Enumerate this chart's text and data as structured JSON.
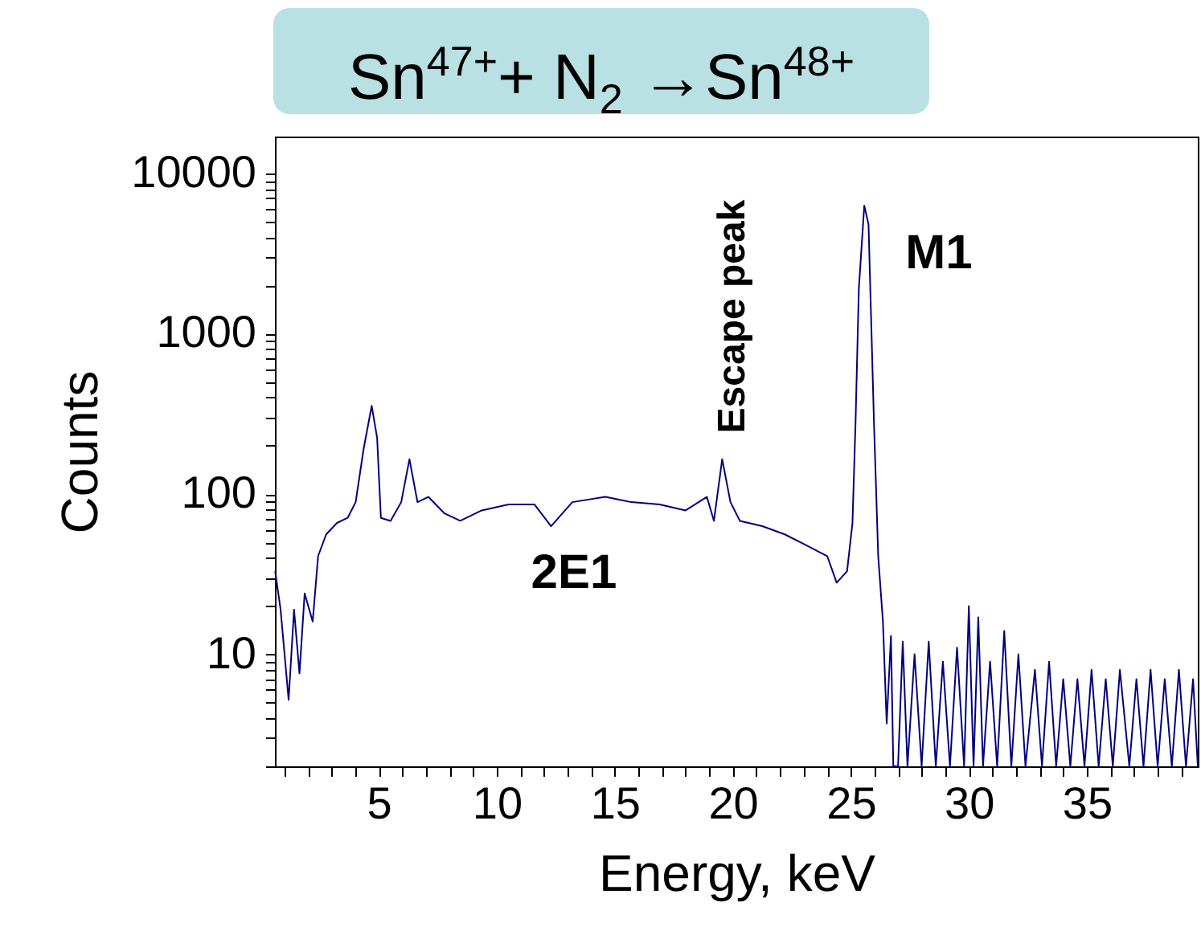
{
  "chart_data": {
    "type": "line",
    "title": "Sn$^{47+}$+ N$_{2}$ →Sn$^{48+}$",
    "xlabel": "Energy, keV",
    "ylabel": "Counts",
    "log": "y",
    "grid": false,
    "marker": "none",
    "line_style": "solid",
    "xlim": [
      0.6,
      39.7
    ],
    "ylim": [
      2,
      17000
    ],
    "xticks": [
      {
        "value": 1,
        "label": null
      },
      {
        "value": 2,
        "label": null
      },
      {
        "value": 3,
        "label": null
      },
      {
        "value": 4,
        "label": null
      },
      5,
      {
        "value": 6,
        "label": null
      },
      {
        "value": 7,
        "label": null
      },
      {
        "value": 8,
        "label": null
      },
      {
        "value": 9,
        "label": null
      },
      10,
      {
        "value": 11,
        "label": null
      },
      {
        "value": 12,
        "label": null
      },
      {
        "value": 13,
        "label": null
      },
      {
        "value": 14,
        "label": null
      },
      15,
      {
        "value": 16,
        "label": null
      },
      {
        "value": 17,
        "label": null
      },
      {
        "value": 18,
        "label": null
      },
      {
        "value": 19,
        "label": null
      },
      20,
      {
        "value": 21,
        "label": null
      },
      {
        "value": 22,
        "label": null
      },
      {
        "value": 23,
        "label": null
      },
      {
        "value": 24,
        "label": null
      },
      25,
      {
        "value": 26,
        "label": null
      },
      {
        "value": 27,
        "label": null
      },
      {
        "value": 28,
        "label": null
      },
      {
        "value": 29,
        "label": null
      },
      30,
      {
        "value": 31,
        "label": null
      },
      {
        "value": 32,
        "label": null
      },
      {
        "value": 33,
        "label": null
      },
      {
        "value": 34,
        "label": null
      },
      35,
      {
        "value": 36,
        "label": null
      },
      {
        "value": 37,
        "label": null
      },
      {
        "value": 38,
        "label": null
      },
      {
        "value": 39,
        "label": null
      }
    ],
    "yticks": [
      {
        "value": 2,
        "label": null
      },
      {
        "value": 3,
        "label": null
      },
      {
        "value": 4,
        "label": null
      },
      {
        "value": 5,
        "label": null
      },
      {
        "value": 6,
        "label": null
      },
      {
        "value": 7,
        "label": null
      },
      {
        "value": 8,
        "label": null
      },
      {
        "value": 9,
        "label": null
      },
      10,
      {
        "value": 20,
        "label": null
      },
      {
        "value": 30,
        "label": null
      },
      {
        "value": 40,
        "label": null
      },
      {
        "value": 50,
        "label": null
      },
      {
        "value": 60,
        "label": null
      },
      {
        "value": 70,
        "label": null
      },
      {
        "value": 80,
        "label": null
      },
      {
        "value": 90,
        "label": null
      },
      100,
      {
        "value": 200,
        "label": null
      },
      {
        "value": 300,
        "label": null
      },
      {
        "value": 400,
        "label": null
      },
      {
        "value": 500,
        "label": null
      },
      {
        "value": 600,
        "label": null
      },
      {
        "value": 700,
        "label": null
      },
      {
        "value": 800,
        "label": null
      },
      {
        "value": 900,
        "label": null
      },
      1000,
      {
        "value": 2000,
        "label": null
      },
      {
        "value": 3000,
        "label": null
      },
      {
        "value": 4000,
        "label": null
      },
      {
        "value": 5000,
        "label": null
      },
      {
        "value": 6000,
        "label": null
      },
      {
        "value": 7000,
        "label": null
      },
      {
        "value": 8000,
        "label": null
      },
      {
        "value": 9000,
        "label": null
      },
      10000
    ],
    "annotations": [
      "Escape peak",
      "M1",
      "2E1"
    ],
    "series": [
      {
        "color": "#00007f",
        "x": [
          0.61,
          0.84,
          1.18,
          1.41,
          1.64,
          1.86,
          2.2,
          2.43,
          2.77,
          3.23,
          3.68,
          4.02,
          4.36,
          4.7,
          4.93,
          5.09,
          5.5,
          5.95,
          6.3,
          6.64,
          7.1,
          7.77,
          8.45,
          9.36,
          10.5,
          11.6,
          12.3,
          13.2,
          14.6,
          15.7,
          16.9,
          18.0,
          18.9,
          19.2,
          19.55,
          19.9,
          20.3,
          21.25,
          22.2,
          23.1,
          24.0,
          24.4,
          24.84,
          25.07,
          25.2,
          25.34,
          25.57,
          25.75,
          25.98,
          26.16,
          26.36,
          26.52,
          26.7,
          26.8,
          27.0,
          27.2,
          27.4,
          27.7,
          28.0,
          28.3,
          28.6,
          28.9,
          29.2,
          29.5,
          29.8,
          30.0,
          30.2,
          30.4,
          30.6,
          30.9,
          31.2,
          31.5,
          31.8,
          32.1,
          32.4,
          32.8,
          33.1,
          33.4,
          33.7,
          34.0,
          34.3,
          34.6,
          34.9,
          35.2,
          35.5,
          35.8,
          36.1,
          36.4,
          36.8,
          37.1,
          37.4,
          37.7,
          38.0,
          38.3,
          38.6,
          38.9,
          39.2,
          39.5,
          39.7
        ],
        "values": [
          33,
          19,
          5.2,
          19,
          7.6,
          24,
          16,
          41,
          56,
          66,
          71,
          89,
          192,
          355,
          224,
          71,
          68,
          89,
          165,
          89,
          96,
          76,
          68,
          79,
          86,
          86,
          63,
          89,
          96,
          89,
          86,
          79,
          96,
          68,
          165,
          89,
          68,
          63,
          56,
          48,
          41,
          28,
          33,
          66,
          281,
          1917,
          6310,
          4800,
          281,
          41,
          16,
          3.7,
          13,
          2,
          2,
          12,
          2,
          10,
          2,
          12,
          2,
          9,
          2,
          11,
          2,
          20,
          2,
          17,
          2,
          9,
          2,
          14,
          2,
          10,
          2,
          8,
          2,
          9,
          2,
          7,
          2,
          7,
          2,
          8,
          2,
          7,
          2,
          8,
          2,
          7,
          2,
          8,
          2,
          7,
          2,
          8,
          2,
          7,
          2
        ]
      }
    ]
  }
}
